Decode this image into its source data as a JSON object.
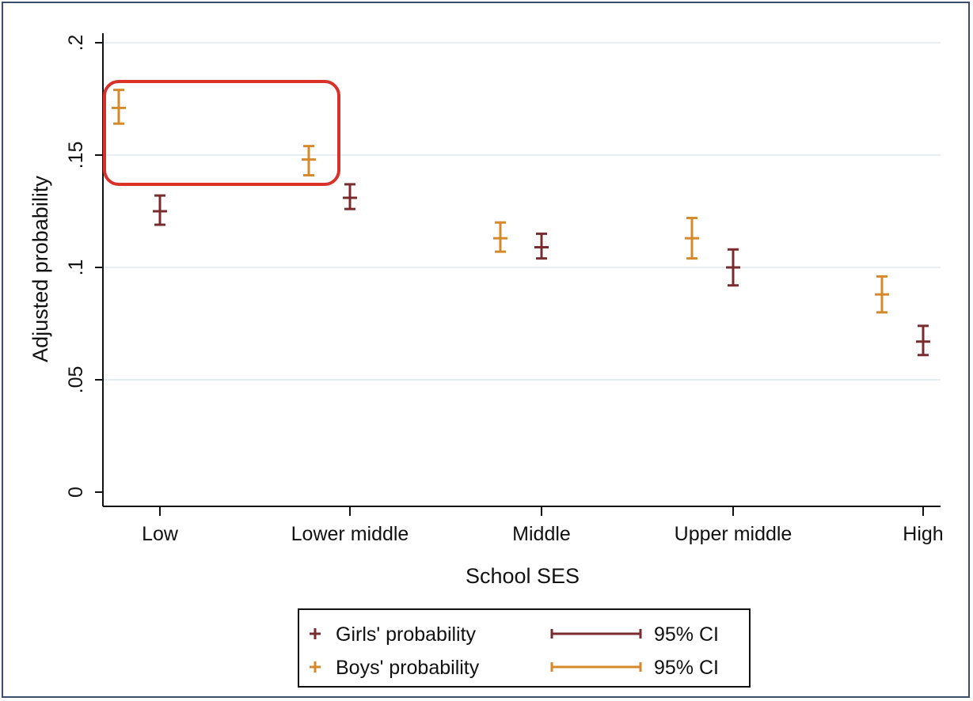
{
  "chart_data": {
    "type": "scatter",
    "title": "",
    "xlabel": "School SES",
    "ylabel": "Adjusted probability",
    "categories": [
      "Low",
      "Lower middle",
      "Middle",
      "Upper middle",
      "High"
    ],
    "yticks": [
      0,
      0.05,
      0.1,
      0.15,
      0.2
    ],
    "ytick_labels": [
      "0",
      ".05",
      ".1",
      ".15",
      ".2"
    ],
    "ylim": [
      0,
      0.2
    ],
    "grid": true,
    "series": [
      {
        "name": "Girls' probability",
        "ci_label": "95% CI",
        "color": "#7a2b2e",
        "values": [
          0.125,
          0.131,
          0.109,
          0.1,
          0.067
        ],
        "ci_low": [
          0.119,
          0.126,
          0.104,
          0.092,
          0.061
        ],
        "ci_high": [
          0.132,
          0.137,
          0.115,
          0.108,
          0.074
        ]
      },
      {
        "name": "Boys' probability",
        "ci_label": "95% CI",
        "color": "#d6892a",
        "values": [
          0.171,
          0.148,
          0.113,
          0.113,
          0.088
        ],
        "ci_low": [
          0.164,
          0.141,
          0.107,
          0.104,
          0.08
        ],
        "ci_high": [
          0.179,
          0.154,
          0.12,
          0.122,
          0.096
        ]
      }
    ],
    "legend_position": "bottom",
    "highlight": {
      "categories": [
        "Low",
        "Lower middle"
      ],
      "series": "Boys' probability",
      "color": "#d9302a"
    }
  }
}
